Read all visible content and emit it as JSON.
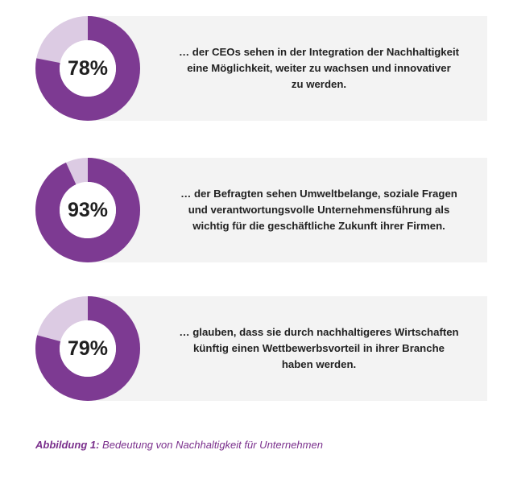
{
  "colors": {
    "ring_fill": "#7d3a92",
    "ring_track": "#dccbe3",
    "card_bg": "#f3f3f3",
    "caption": "#7a2f8c"
  },
  "chart_data": [
    {
      "type": "pie",
      "values": [
        78,
        22
      ],
      "label": "78%",
      "text_lines": [
        "… der CEOs sehen in der Integration der Nachhaltigkeit",
        "eine Möglichkeit, weiter zu wachsen und innovativer",
        "zu werden."
      ]
    },
    {
      "type": "pie",
      "values": [
        93,
        7
      ],
      "label": "93%",
      "text_lines": [
        "… der Befragten sehen Umweltbelange, soziale Fragen",
        "und verantwortungsvolle Unternehmensführung als",
        "wichtig für die geschäftliche Zukunft ihrer Firmen."
      ]
    },
    {
      "type": "pie",
      "values": [
        79,
        21
      ],
      "label": "79%",
      "text_lines": [
        "… glauben, dass sie durch nachhaltigeres Wirtschaften",
        "künftig einen Wettbewerbsvorteil in ihrer Branche",
        "haben werden."
      ]
    }
  ],
  "caption": {
    "prefix": "Abbildung 1:",
    "text": " Bedeutung von Nachhaltigkeit für Unternehmen"
  }
}
